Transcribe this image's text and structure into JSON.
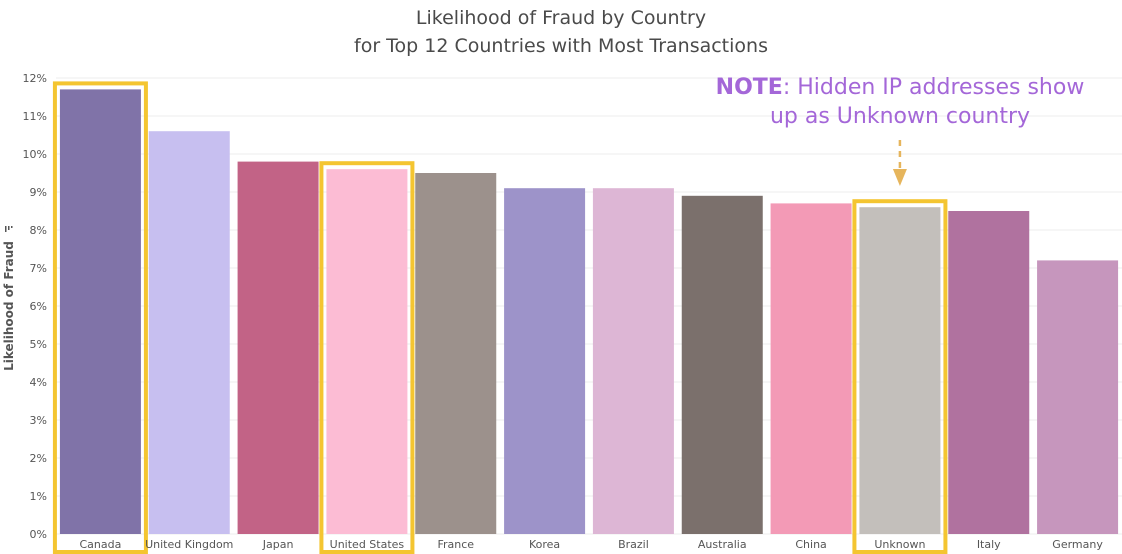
{
  "chart_data": {
    "type": "bar",
    "title": "Likelihood of Fraud by Country",
    "subtitle": "for Top 12 Countries with Most Transactions",
    "ylabel": "Likelihood of Fraud",
    "ylim": [
      0,
      0.12
    ],
    "yticks": [
      "0%",
      "1%",
      "2%",
      "3%",
      "4%",
      "5%",
      "6%",
      "7%",
      "8%",
      "9%",
      "10%",
      "11%",
      "12%"
    ],
    "categories": [
      "Canada",
      "United Kingdom",
      "Japan",
      "United States",
      "France",
      "Korea",
      "Brazil",
      "Australia",
      "China",
      "Unknown",
      "Italy",
      "Germany"
    ],
    "values": [
      0.117,
      0.106,
      0.098,
      0.096,
      0.095,
      0.091,
      0.091,
      0.089,
      0.087,
      0.086,
      0.085,
      0.072
    ],
    "colors": [
      "#8073a8",
      "#c7bff0",
      "#c26386",
      "#fcbcd4",
      "#9c918c",
      "#9d93c9",
      "#ddb6d5",
      "#7b706c",
      "#f39ab6",
      "#c3bfbb",
      "#b0729f",
      "#c696bd"
    ],
    "highlighted": [
      "Canada",
      "United States",
      "Unknown"
    ],
    "highlight_color": "#f4c531",
    "grid": true,
    "annotation": {
      "keyword": "NOTE",
      "text_line1": ": Hidden IP addresses show",
      "text_line2": "up as Unknown country",
      "color": "#a467d8",
      "arrow_color": "#e6b55c",
      "target": "Unknown"
    }
  }
}
